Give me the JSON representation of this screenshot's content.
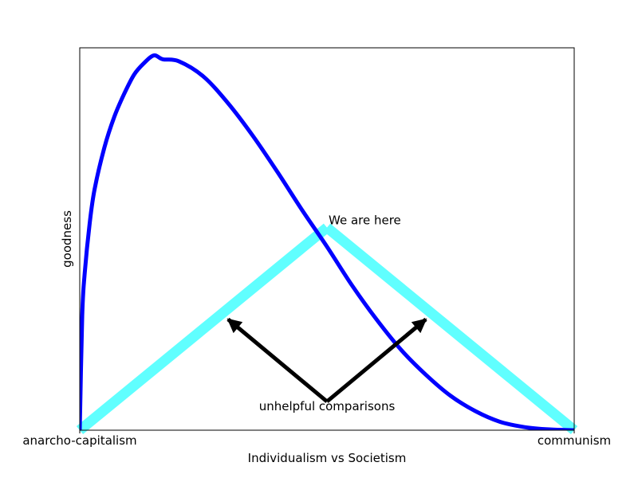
{
  "chart_data": {
    "type": "line",
    "title": "",
    "xlabel": "Individualism vs Societism",
    "ylabel": "goodness",
    "xlim": [
      0,
      1
    ],
    "ylim": [
      0,
      1
    ],
    "x_tick_labels": [
      {
        "x": 0,
        "label": "anarcho-capitalism"
      },
      {
        "x": 1,
        "label": "communism"
      }
    ],
    "y_ticks": [],
    "grid": false,
    "legend": "none",
    "series": [
      {
        "color": "#0000ff",
        "points": [
          [
            0,
            0
          ],
          [
            0.005,
            0.3
          ],
          [
            0.01,
            0.41
          ],
          [
            0.02,
            0.54
          ],
          [
            0.03,
            0.63
          ],
          [
            0.05,
            0.74
          ],
          [
            0.07,
            0.82
          ],
          [
            0.09,
            0.88
          ],
          [
            0.11,
            0.93
          ],
          [
            0.13,
            0.96
          ],
          [
            0.15,
            0.98
          ],
          [
            0.168,
            0.97
          ],
          [
            0.2,
            0.965
          ],
          [
            0.25,
            0.925
          ],
          [
            0.3,
            0.855
          ],
          [
            0.35,
            0.77
          ],
          [
            0.4,
            0.675
          ],
          [
            0.45,
            0.575
          ],
          [
            0.5,
            0.48
          ],
          [
            0.55,
            0.38
          ],
          [
            0.6,
            0.29
          ],
          [
            0.65,
            0.21
          ],
          [
            0.7,
            0.145
          ],
          [
            0.75,
            0.09
          ],
          [
            0.8,
            0.05
          ],
          [
            0.85,
            0.022
          ],
          [
            0.9,
            0.008
          ],
          [
            0.95,
            0.002
          ],
          [
            1.0,
            0
          ]
        ]
      }
    ],
    "annotations": [
      {
        "text": "We are here",
        "at": [
          0.5,
          0.53
        ],
        "arrows_to": [
          [
            0,
            0
          ],
          [
            1,
            0
          ]
        ],
        "arrow_color": "#60ffff",
        "double_headed": true
      },
      {
        "text": "unhelpful comparisons",
        "at": [
          0.5,
          0.075
        ],
        "arrows_to": [
          [
            0.3,
            0.29
          ],
          [
            0.7,
            0.29
          ]
        ],
        "arrow_color": "#000000",
        "double_headed": false
      }
    ]
  }
}
